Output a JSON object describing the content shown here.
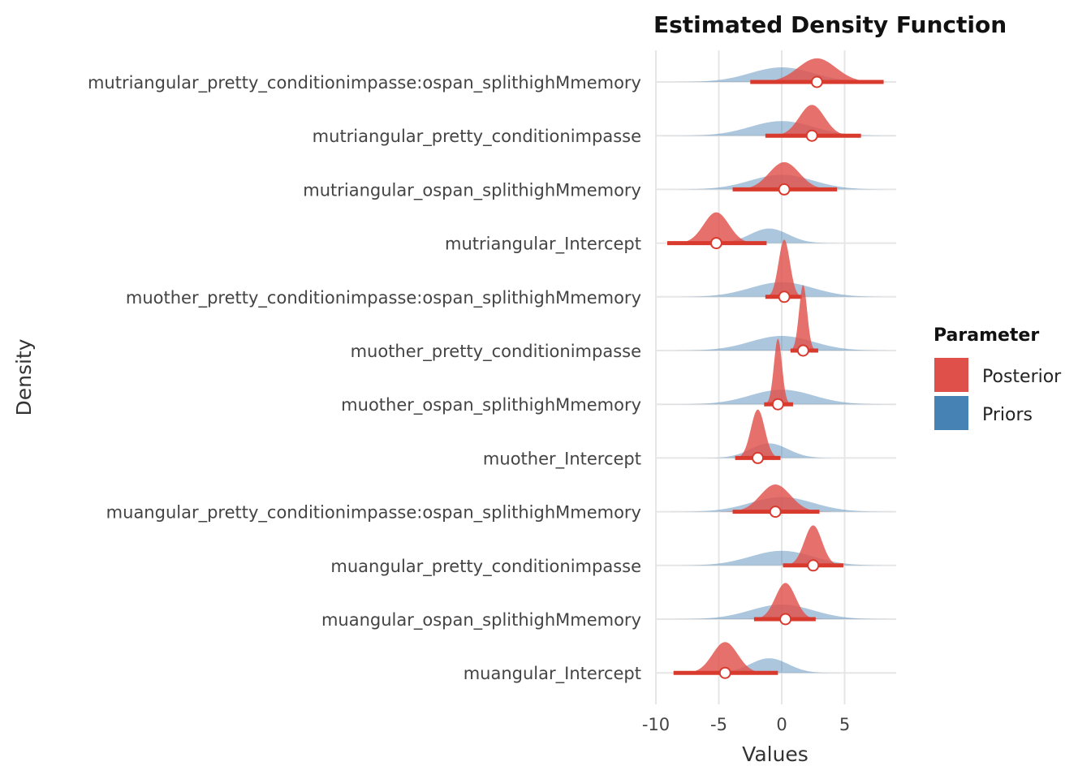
{
  "chart_data": {
    "type": "area",
    "title": "Estimated Density Function",
    "xlabel": "Values",
    "ylabel": "Density",
    "xlim": [
      -10,
      9
    ],
    "x_ticks": [
      -10,
      -5,
      0,
      5
    ],
    "grid": true,
    "legend": {
      "title": "Parameter",
      "position": "right",
      "entries": [
        {
          "name": "Posterior",
          "color": "#E0504A"
        },
        {
          "name": "Priors",
          "color": "#4682B4"
        }
      ]
    },
    "categories": [
      "mutriangular_pretty_conditionimpasse:ospan_splithighMmemory",
      "mutriangular_pretty_conditionimpasse",
      "mutriangular_ospan_splithighMmemory",
      "mutriangular_Intercept",
      "muother_pretty_conditionimpasse:ospan_splithighMmemory",
      "muother_pretty_conditionimpasse",
      "muother_ospan_splithighMmemory",
      "muother_Intercept",
      "muangular_pretty_conditionimpasse:ospan_splithighMmemory",
      "muangular_pretty_conditionimpasse",
      "muangular_ospan_splithighMmemory",
      "muangular_Intercept"
    ],
    "series": [
      {
        "name": "Posterior",
        "color": "#E0504A",
        "median": [
          2.8,
          2.4,
          0.2,
          -5.2,
          0.2,
          1.7,
          -0.3,
          -1.9,
          -0.5,
          2.5,
          0.3,
          -4.5
        ],
        "sd": [
          1.5,
          1.0,
          1.2,
          1.0,
          0.45,
          0.32,
          0.32,
          0.55,
          1.2,
          0.7,
          0.8,
          1.0
        ],
        "interval_low": [
          -2.5,
          -1.3,
          -3.9,
          -9.1,
          -1.3,
          0.7,
          -1.4,
          -3.7,
          -3.9,
          0.1,
          -2.2,
          -8.6
        ],
        "interval_high": [
          8.1,
          6.3,
          4.4,
          -1.2,
          1.6,
          2.9,
          0.9,
          -0.1,
          3.0,
          4.9,
          2.7,
          -0.3
        ]
      },
      {
        "name": "Priors",
        "color": "#4682B4",
        "mean": [
          0,
          0,
          0,
          -1,
          0,
          0,
          0,
          -1,
          0,
          0,
          0,
          -1
        ],
        "sd": [
          2.5,
          2.5,
          2.5,
          1.5,
          2.5,
          2.5,
          2.5,
          1.5,
          2.5,
          2.5,
          2.5,
          1.5
        ]
      }
    ]
  }
}
